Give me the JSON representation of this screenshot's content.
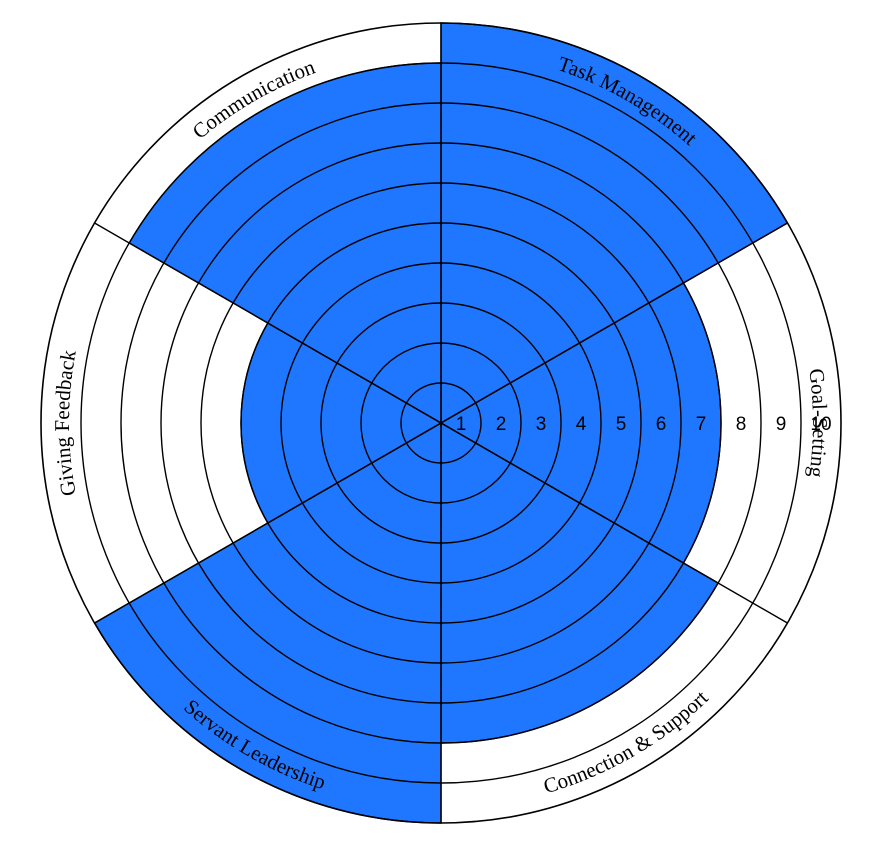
{
  "chart_data": {
    "type": "polar-bar",
    "scale_max": 10,
    "tick_labels": [
      "1",
      "2",
      "3",
      "4",
      "5",
      "6",
      "7",
      "8",
      "9",
      "10"
    ],
    "categories": [
      "Task Management",
      "Goal-Setting",
      "Connection & Support",
      "Servant Leadership",
      "Giving Feedback",
      "Communication"
    ],
    "values": [
      10,
      7,
      8,
      10,
      5,
      9
    ],
    "fill_color": "#1f77ff",
    "line_color": "#000000"
  }
}
